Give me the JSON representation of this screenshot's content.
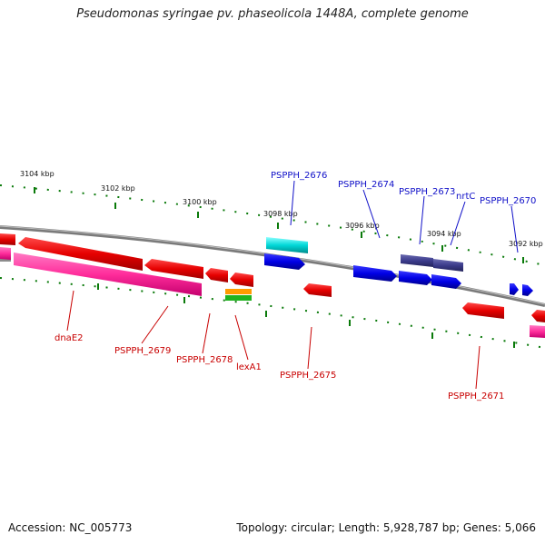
{
  "title": "Pseudomonas syringae pv. phaseolicola 1448A, complete genome",
  "footer": {
    "accession": "Accession: NC_005773",
    "topology": "Topology: circular; Length: 5,928,787 bp; Genes: 5,066"
  },
  "scale_labels": [
    "3104 kbp",
    "3102 kbp",
    "3100 kbp",
    "3098 kbp",
    "3096 kbp",
    "3094 kbp",
    "3092 kbp"
  ],
  "gene_labels": {
    "top": [
      "PSPPH_2676",
      "PSPPH_2674",
      "PSPPH_2673",
      "nrtC",
      "PSPPH_2670"
    ],
    "bottom": [
      "dnaE2",
      "PSPPH_2679",
      "PSPPH_2678",
      "lexA1",
      "PSPPH_2675",
      "PSPPH_2671"
    ]
  },
  "colors": {
    "forward_gene": "#0000e6",
    "reverse_gene": "#e60000",
    "rna_gene": "#00d8d8",
    "operon": "#3c3c8c",
    "pseudo_gene": "#ff2d9b",
    "label_blue": "#1010c8",
    "label_red": "#c80000",
    "tick": "#0a7a0a",
    "backbone": "#7a7a7a"
  }
}
